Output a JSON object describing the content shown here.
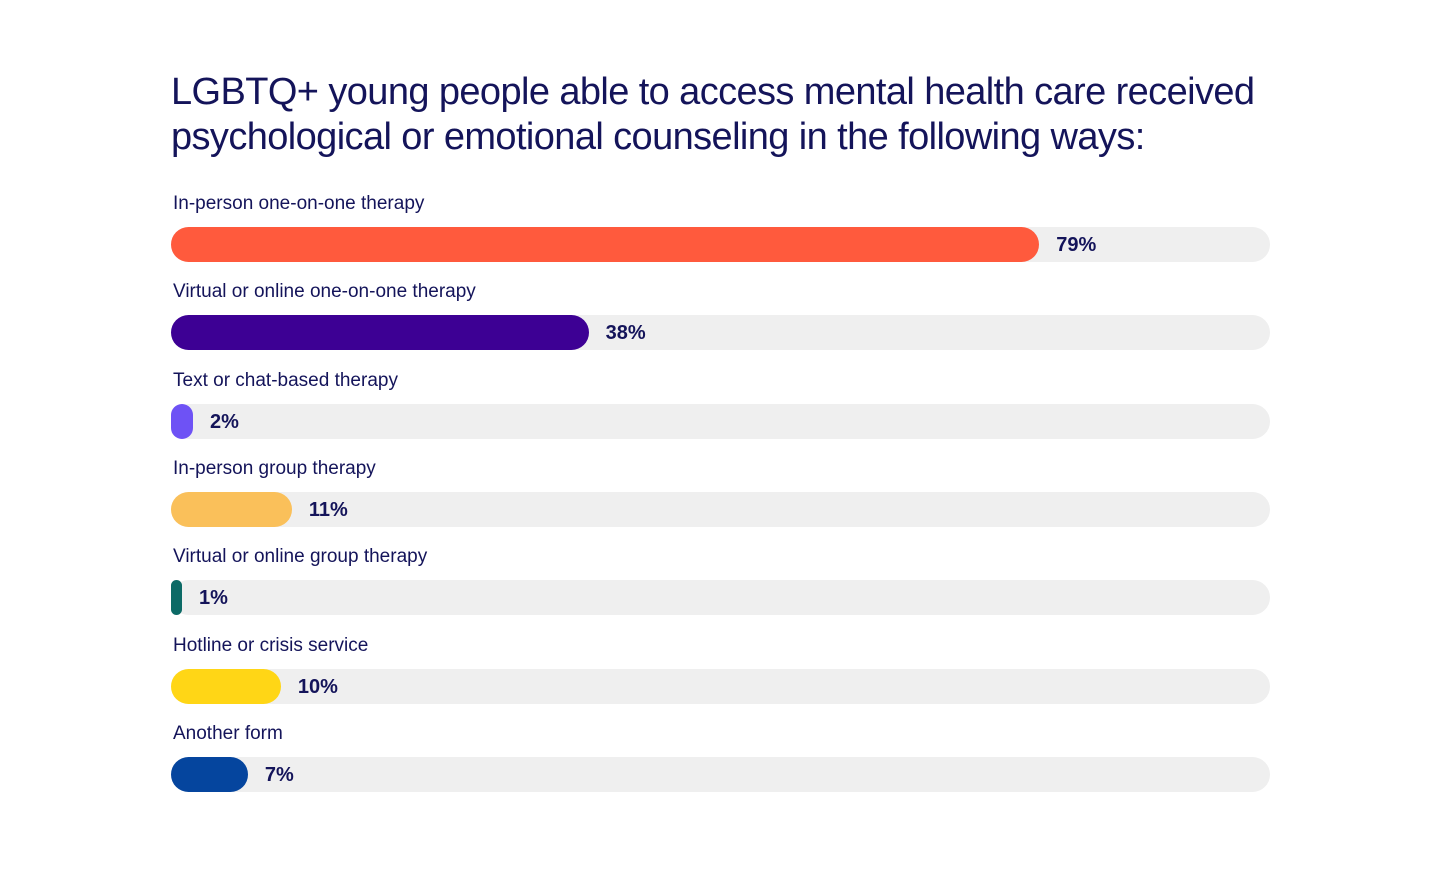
{
  "chart_data": {
    "type": "bar",
    "orientation": "horizontal",
    "title": "LGBTQ+ young people able to access mental health care received\npsychological or emotional counseling in the following ways:",
    "categories": [
      "In-person one-on-one therapy",
      "Virtual or online one-on-one therapy",
      "Text or chat-based therapy",
      "In-person group therapy",
      "Virtual or online group therapy",
      "Hotline or crisis service",
      "Another form"
    ],
    "values": [
      79,
      38,
      2,
      11,
      1,
      10,
      7
    ],
    "value_labels": [
      "79%",
      "38%",
      "2%",
      "11%",
      "1%",
      "10%",
      "7%"
    ],
    "colors": [
      "#ff5a3d",
      "#3d0094",
      "#6e52f5",
      "#fac05a",
      "#0c6a66",
      "#ffd616",
      "#05459e"
    ],
    "track_color": "#efefef",
    "xlim": [
      0,
      100
    ],
    "grid": false,
    "legend": "none"
  }
}
